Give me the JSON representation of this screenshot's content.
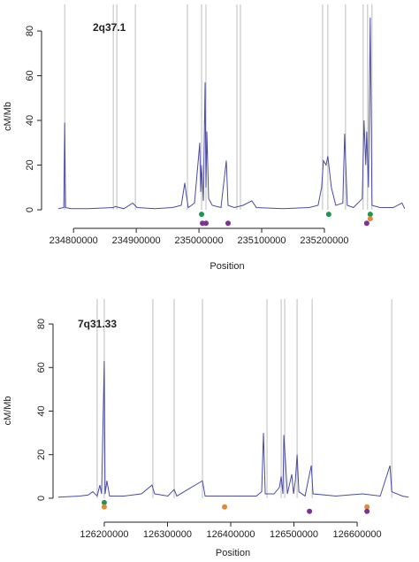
{
  "chart_data": [
    {
      "type": "line",
      "annotation": "2q37.1",
      "xlabel": "Position",
      "ylabel": "cM/Mb",
      "color": "#4b4ba6",
      "xlim": [
        234749000,
        235341000
      ],
      "ylim": [
        -8.3,
        91.9
      ],
      "xticks": [
        234800000,
        234900000,
        235000000,
        235100000,
        235200000
      ],
      "yticks": [
        0,
        20,
        40,
        60,
        80
      ],
      "x": [
        234776000,
        234784500,
        234785900,
        234787300,
        234795800,
        234823900,
        234863400,
        234866200,
        234880300,
        234894300,
        234901400,
        234929500,
        234957700,
        234971800,
        234977400,
        234980200,
        234983000,
        234992900,
        235001300,
        235002800,
        235004200,
        235007000,
        235009800,
        235011200,
        235012600,
        235015400,
        235021100,
        235035100,
        235043600,
        235046400,
        235056300,
        235070300,
        235084400,
        235091500,
        235133700,
        235175900,
        235190000,
        235195600,
        235198500,
        235202700,
        235205500,
        235211100,
        235218200,
        235229400,
        235232300,
        235236500,
        235246300,
        235260400,
        235263200,
        235266000,
        235267500,
        235270300,
        235273100,
        235275900,
        235288600,
        235309700,
        235323800,
        235328000
      ],
      "values": [
        0.5,
        1,
        39,
        1,
        0.5,
        0.5,
        1,
        1.5,
        0.5,
        3,
        1,
        0.5,
        1,
        2,
        12,
        6,
        1,
        3,
        30,
        8,
        20,
        4,
        57,
        10,
        35,
        5,
        2,
        1,
        22,
        2,
        1,
        2,
        4,
        1,
        0.5,
        1,
        2,
        10,
        22,
        20,
        24,
        10,
        2,
        3,
        34,
        2,
        1,
        5,
        40,
        20,
        35,
        10,
        86,
        2,
        1,
        1,
        3,
        0.5
      ],
      "vline_color": "#bdbdbd",
      "vlines": [
        234785900,
        234863400,
        234869000,
        234898600,
        234981600,
        235004200,
        235011200,
        235060500,
        235066100,
        235197100,
        235205500,
        235233700,
        235261800,
        235268900,
        235275900
      ],
      "points": [
        {
          "color": "#1a9850",
          "x": [
            235004200,
            235206900,
            235273100
          ],
          "y": [
            -2,
            -2,
            -2
          ]
        },
        {
          "color": "#e08a3c",
          "x": [
            235273100
          ],
          "y": [
            -4
          ]
        },
        {
          "color": "#7b3294",
          "x": [
            235005600,
            235011200,
            235046400,
            235267500
          ],
          "y": [
            -6,
            -6,
            -6,
            -6
          ]
        }
      ]
    },
    {
      "type": "line",
      "annotation": "7q31.33",
      "xlabel": "Position",
      "ylabel": "cM/Mb",
      "color": "#4b4ba6",
      "xlim": [
        126119000,
        126688000
      ],
      "ylim": [
        -11,
        91.4
      ],
      "xticks": [
        126200000,
        126300000,
        126400000,
        126500000,
        126600000
      ],
      "yticks": [
        0,
        20,
        40,
        60,
        80
      ],
      "x": [
        126127300,
        126160800,
        126174800,
        126181800,
        126188800,
        126193000,
        126195800,
        126200000,
        126201400,
        126204200,
        126208400,
        126230800,
        126258800,
        126275500,
        126279700,
        126300700,
        126310500,
        126314700,
        126355300,
        126359500,
        126398700,
        126440600,
        126449000,
        126451800,
        126454600,
        126468600,
        126477000,
        126479800,
        126482600,
        126484000,
        126486800,
        126489600,
        126496600,
        126499400,
        126502200,
        126505000,
        126507800,
        126517600,
        126527400,
        126530200,
        126566500,
        126608500,
        126636500,
        126651900,
        126654700,
        126671500,
        126681300
      ],
      "values": [
        0.5,
        1,
        1.5,
        3,
        1,
        6,
        2,
        63,
        2,
        8,
        1,
        1,
        2,
        6,
        2,
        1,
        4,
        1,
        8,
        1,
        1,
        1,
        3,
        30,
        2,
        2,
        5,
        10,
        2,
        29,
        16,
        2,
        11,
        2,
        8,
        20,
        3,
        1,
        15,
        2,
        1,
        2,
        1,
        15,
        3,
        1,
        0.5
      ],
      "vline_color": "#bdbdbd",
      "vlines": [
        126188800,
        126200000,
        126276900,
        126310500,
        126355300,
        126457400,
        126479800,
        126485400,
        126505000,
        126528800,
        126654700
      ],
      "points": [
        {
          "color": "#1a9850",
          "x": [
            126200000
          ],
          "y": [
            -2
          ]
        },
        {
          "color": "#e08a3c",
          "x": [
            126200000,
            126390300,
            126615500
          ],
          "y": [
            -4,
            -4,
            -4
          ]
        },
        {
          "color": "#7b3294",
          "x": [
            126524600,
            126615500
          ],
          "y": [
            -6,
            -6
          ]
        }
      ]
    }
  ]
}
